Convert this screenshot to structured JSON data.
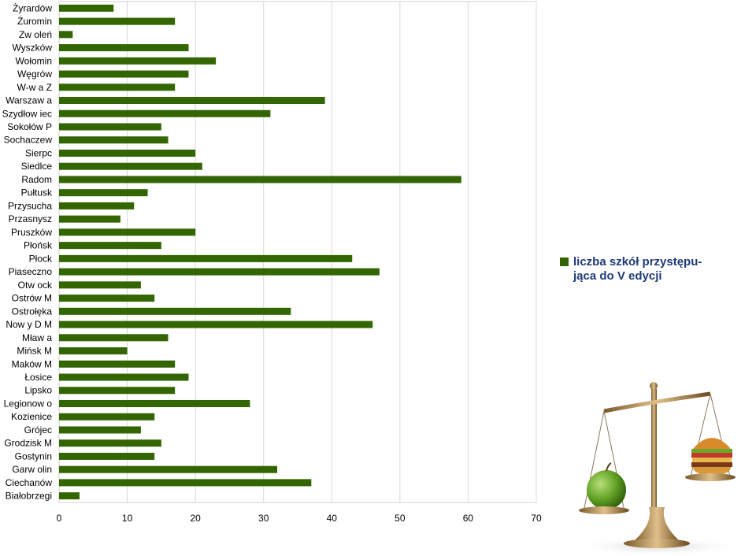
{
  "chart_data": {
    "type": "bar",
    "orientation": "horizontal",
    "title": "",
    "xlabel": "",
    "ylabel": "",
    "xlim": [
      0,
      70
    ],
    "x_ticks": [
      "0",
      "10",
      "20",
      "30",
      "40",
      "50",
      "60",
      "70"
    ],
    "grid": "vertical",
    "legend_position": "right",
    "categories": [
      "Żyrardów",
      "Żuromin",
      "Zw oleń",
      "Wyszków",
      "Wołomin",
      "Węgrów",
      "W-w a Z",
      "Warszaw a",
      "Szydłow iec",
      "Sokołów P",
      "Sochaczew",
      "Sierpc",
      "Siedlce",
      "Radom",
      "Pułtusk",
      "Przysucha",
      "Przasnysz",
      "Pruszków",
      "Płońsk",
      "Płock",
      "Piaseczno",
      "Otw ock",
      "Ostrów M",
      "Ostrołęka",
      "Now y D M",
      "Mław a",
      "Mińsk M",
      "Maków M",
      "Łosice",
      "Lipsko",
      "Legionow o",
      "Kozienice",
      "Grójec",
      "Grodzisk M",
      "Gostynin",
      "Garw olin",
      "Ciechanów",
      "Białobrzegi"
    ],
    "series": [
      {
        "name": "liczba szkół przystępu- jąca do V edycji",
        "color": "#336600",
        "values": [
          8,
          17,
          2,
          19,
          23,
          19,
          17,
          39,
          31,
          15,
          16,
          20,
          21,
          59,
          13,
          11,
          9,
          20,
          15,
          43,
          47,
          12,
          14,
          34,
          46,
          16,
          10,
          17,
          19,
          17,
          28,
          14,
          12,
          15,
          14,
          32,
          37,
          3
        ]
      }
    ]
  },
  "legend": {
    "line1": "liczba szkół  przystępu-",
    "line2": "jąca do V edycji",
    "swatch_color": "#336600"
  },
  "illustration": {
    "icon": "balance-scale-apple-burger-icon"
  }
}
